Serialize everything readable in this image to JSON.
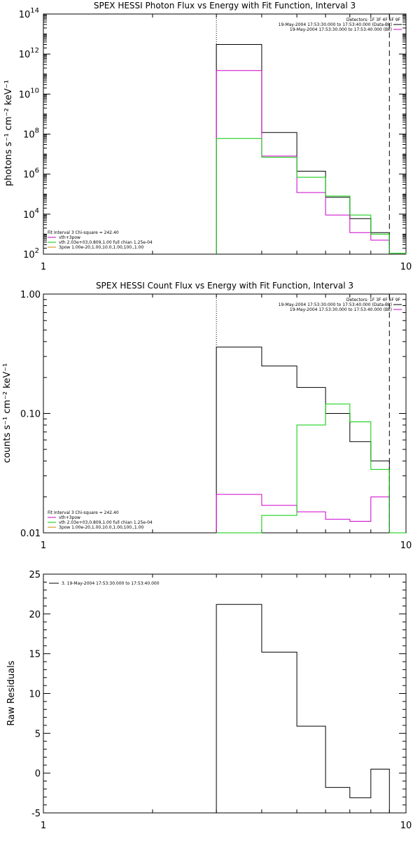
{
  "chart_data": [
    {
      "type": "line",
      "title": "SPEX HESSI Photon Flux vs Energy with Fit Function, Interval 3",
      "ylabel": "photons s⁻¹ cm⁻² keV⁻¹",
      "xlabel": "",
      "xscale": "log",
      "yscale": "log",
      "xlim": [
        1,
        10
      ],
      "ylim": [
        100,
        100000000000000.0
      ],
      "x_ticks": [
        "1",
        "10"
      ],
      "y_ticks": [
        {
          "v": 100,
          "base": "10",
          "exp": "2"
        },
        {
          "v": 10000,
          "base": "10",
          "exp": "4"
        },
        {
          "v": 1000000,
          "base": "10",
          "exp": "6"
        },
        {
          "v": 100000000,
          "base": "10",
          "exp": "8"
        },
        {
          "v": 10000000000,
          "base": "10",
          "exp": "10"
        },
        {
          "v": 1000000000000,
          "base": "10",
          "exp": "12"
        },
        {
          "v": 100000000000000,
          "base": "10",
          "exp": "14"
        }
      ],
      "legend_tr": [
        "Detectors: 1F 3F 4F 6F 9F",
        "19-May-2004 17:53:30.000 to 17:53:40.000 (Data-Bk)",
        "19-May-2004 17:53:30.000 to 17:53:40.000 (Bk)"
      ],
      "legend_bl": [
        "Fit Interval 3   Chi-square = 242.40",
        "vth+3pow",
        "vth 2.03e+03,0.809,1.00  full chian 1.25e-04",
        "3pow 1.00e-20,1.00,10.0,1.00,100.,1.00"
      ],
      "legend_bl_colors": [
        "#000000",
        "#cc00cc",
        "#00cc00",
        "#cc8800"
      ],
      "vlines": [
        {
          "x": 3.0,
          "style": "dotted"
        },
        {
          "x": 9.0,
          "style": "dashed"
        }
      ],
      "series": [
        {
          "color": "#000000",
          "edges": [
            3.0,
            4.0,
            5.0,
            6.0,
            7.0,
            8.0,
            9.0
          ],
          "values": [
            3000000000000.0,
            120000000.0,
            1400000.0,
            70000.0,
            6000.0,
            1200.0
          ]
        },
        {
          "color": "#cc00cc",
          "edges": [
            3.0,
            4.0,
            5.0,
            6.0,
            7.0,
            8.0,
            9.0
          ],
          "values": [
            150000000000.0,
            8000000.0,
            120000.0,
            9000.0,
            1200.0,
            500.0
          ]
        },
        {
          "color": "#00cc00",
          "edges": [
            3.0,
            4.0,
            5.0,
            6.0,
            7.0,
            8.0,
            9.0,
            10.0
          ],
          "values": [
            60000000.0,
            7000000.0,
            700000.0,
            80000.0,
            9000.0,
            1000.0,
            110.0
          ]
        }
      ]
    },
    {
      "type": "line",
      "title": "SPEX HESSI Count Flux vs Energy with Fit Function, Interval 3",
      "ylabel": "counts s⁻¹ cm⁻² keV⁻¹",
      "xlabel": "",
      "xscale": "log",
      "yscale": "log",
      "xlim": [
        1,
        10
      ],
      "ylim": [
        0.01,
        1.0
      ],
      "x_ticks": [
        "1",
        "10"
      ],
      "y_ticks": [
        {
          "v": 0.01,
          "label": "0.01"
        },
        {
          "v": 0.1,
          "label": "0.10"
        },
        {
          "v": 1.0,
          "label": "1.00"
        }
      ],
      "legend_tr": [
        "Detectors: 1F 3F 4F 6F 9F",
        "19-May-2004 17:53:30.000 to 17:53:40.000 (Data-Bk)",
        "19-May-2004 17:53:30.000 to 17:53:40.000 (Bk)"
      ],
      "legend_bl": [
        "Fit Interval 3   Chi-square = 242.40",
        "vth+3pow",
        "vth 2.03e+03,0.809,1.00  full chian 1.25e-04",
        "3pow 1.00e-20,1.00,10.0,1.00,100.,1.00"
      ],
      "legend_bl_colors": [
        "#000000",
        "#cc00cc",
        "#00cc00",
        "#cc8800"
      ],
      "vlines": [
        {
          "x": 3.0,
          "style": "dotted"
        },
        {
          "x": 9.0,
          "style": "dashed"
        }
      ],
      "series": [
        {
          "color": "#000000",
          "edges": [
            3.0,
            4.0,
            5.0,
            6.0,
            7.0,
            8.0,
            9.0
          ],
          "values": [
            0.36,
            0.25,
            0.165,
            0.1,
            0.058,
            0.04
          ]
        },
        {
          "color": "#cc00cc",
          "edges": [
            3.0,
            4.0,
            5.0,
            6.0,
            7.0,
            8.0,
            9.0
          ],
          "values": [
            0.021,
            0.017,
            0.015,
            0.013,
            0.0125,
            0.02
          ]
        },
        {
          "color": "#00cc00",
          "edges": [
            3.0,
            4.0,
            5.0,
            6.0,
            7.0,
            8.0,
            9.0,
            10.0
          ],
          "values": [
            0.01,
            0.014,
            0.08,
            0.12,
            0.085,
            0.034,
            0.01
          ]
        }
      ]
    },
    {
      "type": "line",
      "title": "",
      "ylabel": "Raw Residuals",
      "xlabel": "",
      "xscale": "log",
      "yscale": "linear",
      "xlim": [
        1,
        10
      ],
      "ylim": [
        -5,
        25
      ],
      "x_ticks": [
        "1",
        "10"
      ],
      "y_ticks": [
        {
          "v": -5,
          "label": "-5"
        },
        {
          "v": 0,
          "label": "0"
        },
        {
          "v": 5,
          "label": "5"
        },
        {
          "v": 10,
          "label": "10"
        },
        {
          "v": 15,
          "label": "15"
        },
        {
          "v": 20,
          "label": "20"
        },
        {
          "v": 25,
          "label": "25"
        }
      ],
      "legend_tl": [
        "3. 19-May-2004 17:53:30.000 to 17:53:40.000"
      ],
      "series": [
        {
          "color": "#000000",
          "edges": [
            3.0,
            4.0,
            5.0,
            6.0,
            7.0,
            8.0,
            9.0
          ],
          "values": [
            21.2,
            15.2,
            5.9,
            -1.8,
            -3.1,
            0.5
          ]
        }
      ]
    }
  ]
}
